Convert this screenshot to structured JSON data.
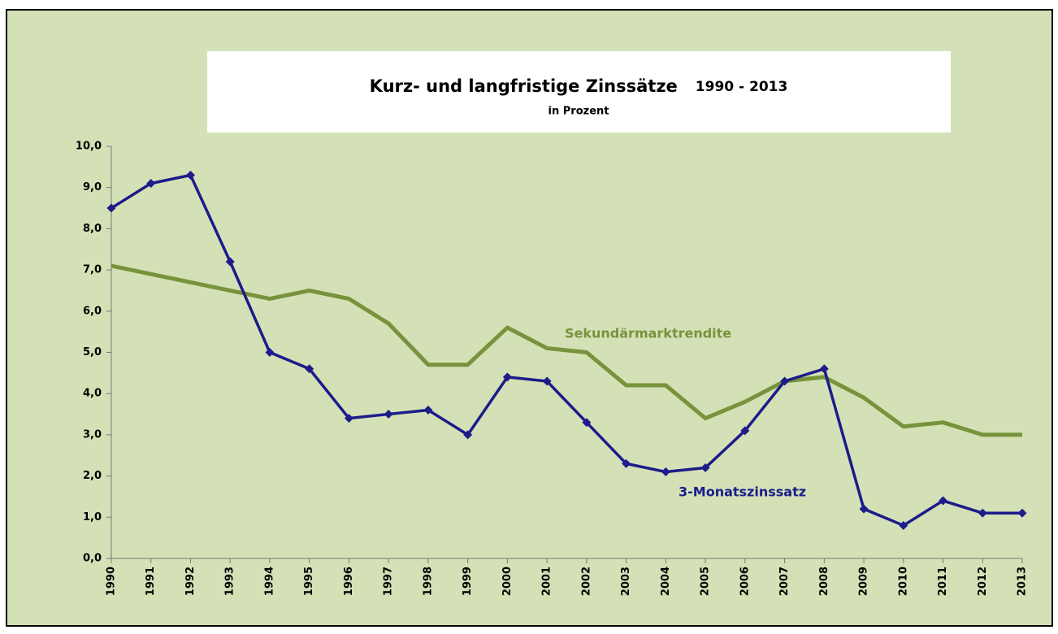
{
  "chart_data": {
    "type": "line",
    "title": "Kurz- und langfristige Zinssätze",
    "title_period": "1990 - 2013",
    "subtitle": "in Prozent",
    "categories": [
      "1990",
      "1991",
      "1992",
      "1993",
      "1994",
      "1995",
      "1996",
      "1997",
      "1998",
      "1999",
      "2000",
      "2001",
      "2002",
      "2003",
      "2004",
      "2005",
      "2006",
      "2007",
      "2008",
      "2009",
      "2010",
      "2011",
      "2012",
      "2013"
    ],
    "series": [
      {
        "name": "3-Monatszinssatz",
        "color": "#1c1c8a",
        "marker": "diamond",
        "values": [
          8.5,
          9.1,
          9.3,
          7.2,
          5.0,
          4.6,
          3.4,
          3.5,
          3.6,
          3.0,
          4.4,
          4.3,
          3.3,
          2.3,
          2.1,
          2.2,
          3.1,
          4.3,
          4.6,
          1.2,
          0.8,
          1.4,
          1.1,
          1.1
        ]
      },
      {
        "name": "Sekundärmarktrendite",
        "color": "#77933c",
        "values": [
          7.1,
          6.9,
          6.7,
          6.5,
          6.3,
          6.5,
          6.3,
          5.7,
          4.7,
          4.7,
          5.6,
          5.1,
          5.0,
          4.2,
          4.2,
          3.4,
          3.8,
          4.3,
          4.4,
          3.9,
          3.2,
          3.3,
          3.0,
          3.0
        ]
      }
    ],
    "ylim": [
      0,
      10
    ],
    "yticks": [
      {
        "value": 0,
        "label": "0,0"
      },
      {
        "value": 1,
        "label": "1,0"
      },
      {
        "value": 2,
        "label": "2,0"
      },
      {
        "value": 3,
        "label": "3,0"
      },
      {
        "value": 4,
        "label": "4,0"
      },
      {
        "value": 5,
        "label": "5,0"
      },
      {
        "value": 6,
        "label": "6,0"
      },
      {
        "value": 7,
        "label": "7,0"
      },
      {
        "value": 8,
        "label": "8,0"
      },
      {
        "value": 9,
        "label": "9,0"
      },
      {
        "value": 10,
        "label": "10,0"
      }
    ],
    "grid": false,
    "background": "#d4e1b6"
  }
}
